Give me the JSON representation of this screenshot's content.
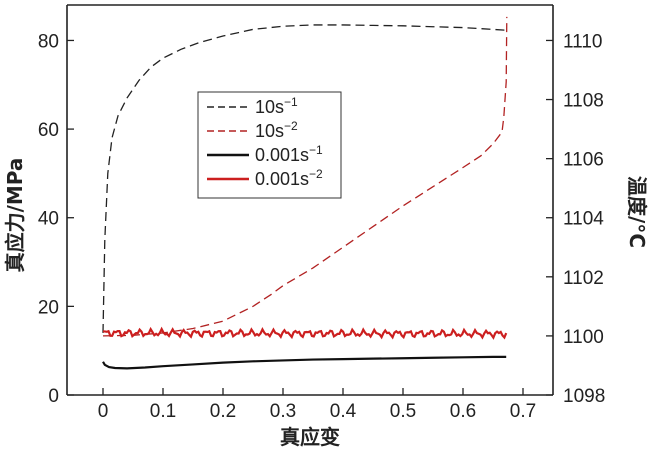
{
  "chart_data": {
    "type": "line",
    "xlabel": "真应变",
    "ylabel": "真应力/MPa",
    "y2label": "温度/°C",
    "xlim": [
      -0.06,
      0.75
    ],
    "ylim": [
      0,
      88
    ],
    "y2lim": [
      1098,
      1111.2
    ],
    "x_ticks": [
      0,
      0.1,
      0.2,
      0.3,
      0.4,
      0.5,
      0.6,
      0.7
    ],
    "x_tick_labels": [
      "0",
      "0.1",
      "0.2",
      "0.3",
      "0.4",
      "0.5",
      "0.6",
      "0.7"
    ],
    "y_ticks": [
      0,
      20,
      40,
      60,
      80
    ],
    "y_tick_labels": [
      "0",
      "20",
      "40",
      "60",
      "80"
    ],
    "y2_ticks": [
      1098,
      1100,
      1102,
      1104,
      1106,
      1108,
      1110
    ],
    "y2_tick_labels": [
      "1098",
      "1100",
      "1102",
      "1104",
      "1106",
      "1108",
      "1110"
    ],
    "legend_position": "upper-left-center",
    "series": [
      {
        "name": "10s−1",
        "base": "10s",
        "sup": "−1",
        "axis": "left",
        "color": "#222222",
        "dash": "dashed",
        "x": [
          0,
          0.003,
          0.008,
          0.015,
          0.025,
          0.04,
          0.06,
          0.08,
          0.1,
          0.13,
          0.16,
          0.2,
          0.25,
          0.3,
          0.35,
          0.4,
          0.45,
          0.5,
          0.55,
          0.6,
          0.65,
          0.672
        ],
        "y": [
          14,
          35,
          50,
          58,
          63,
          67,
          71,
          74,
          76,
          78,
          79.5,
          81,
          82.5,
          83.2,
          83.5,
          83.5,
          83.4,
          83.3,
          83.1,
          82.9,
          82.5,
          82.3
        ]
      },
      {
        "name": "10s−2",
        "base": "10s",
        "sup": "−2",
        "axis": "right",
        "color": "#b22222",
        "dash": "dashed",
        "x": [
          0,
          0.05,
          0.1,
          0.15,
          0.2,
          0.25,
          0.28,
          0.3,
          0.35,
          0.4,
          0.45,
          0.5,
          0.55,
          0.6,
          0.63,
          0.65,
          0.665,
          0.668,
          0.672,
          0.673
        ],
        "y": [
          1100,
          1100.02,
          1100.1,
          1100.25,
          1100.5,
          1101.0,
          1101.4,
          1101.7,
          1102.3,
          1103.0,
          1103.7,
          1104.4,
          1105.05,
          1105.7,
          1106.1,
          1106.5,
          1106.9,
          1107.4,
          1108.6,
          1110.8
        ]
      },
      {
        "name": "0.001s−1",
        "base": "0.001s",
        "sup": "−1",
        "axis": "left",
        "color": "#111111",
        "dash": "solid",
        "x": [
          0,
          0.003,
          0.01,
          0.02,
          0.04,
          0.07,
          0.1,
          0.15,
          0.2,
          0.25,
          0.3,
          0.35,
          0.4,
          0.45,
          0.5,
          0.55,
          0.6,
          0.65,
          0.672
        ],
        "y": [
          7.5,
          6.8,
          6.3,
          6.1,
          6.0,
          6.2,
          6.5,
          6.9,
          7.3,
          7.6,
          7.8,
          8.0,
          8.1,
          8.2,
          8.3,
          8.4,
          8.5,
          8.6,
          8.6
        ]
      },
      {
        "name": "0.001s−2",
        "base": "0.001s",
        "sup": "−2",
        "axis": "left",
        "color": "#cc1f1f",
        "dash": "solid",
        "x": [
          0,
          0.672
        ],
        "y": [
          14.0,
          13.8
        ],
        "noise": 0.9
      }
    ]
  }
}
